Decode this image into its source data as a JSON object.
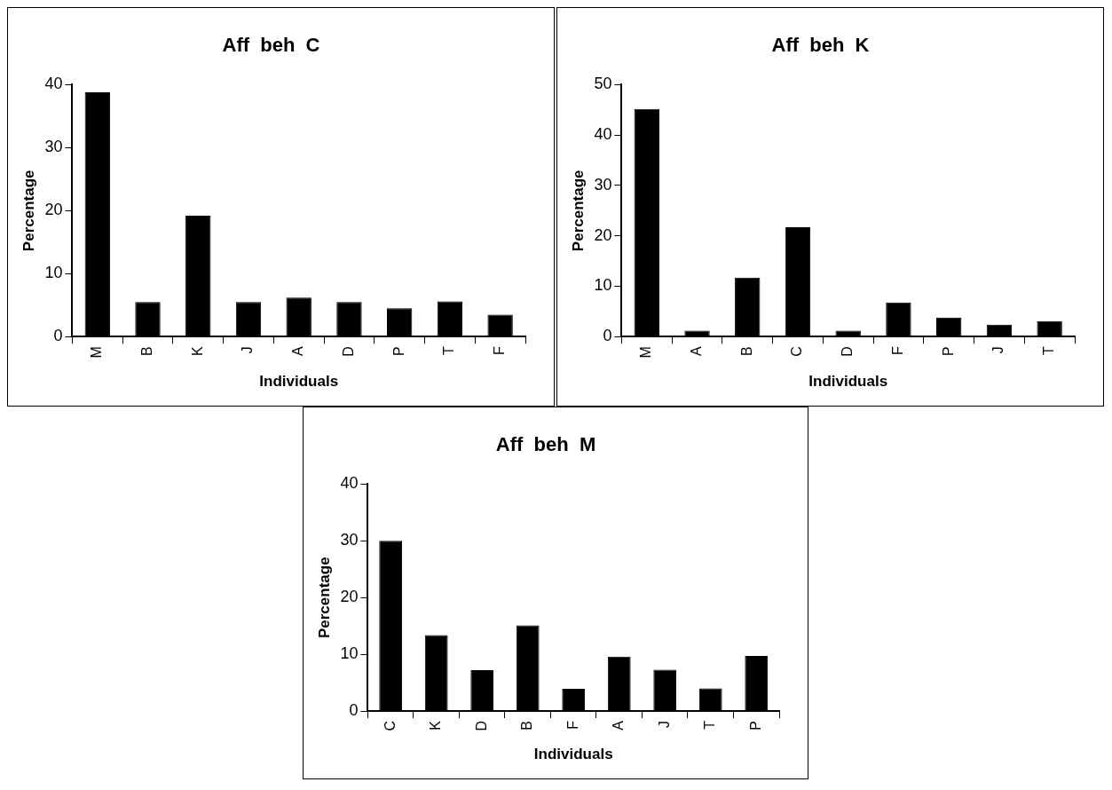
{
  "chart_data": [
    {
      "type": "bar",
      "title": "Aff  beh  C",
      "xlabel": "Individuals",
      "ylabel": "Percentage",
      "categories": [
        "M",
        "B",
        "K",
        "J",
        "A",
        "D",
        "P",
        "T",
        "F"
      ],
      "values": [
        38.8,
        5.5,
        19.2,
        5.5,
        6.2,
        5.5,
        4.5,
        5.6,
        3.5
      ],
      "color": "#000000",
      "ylim": [
        0,
        40
      ],
      "yticks": [
        0,
        10,
        20,
        30,
        40
      ],
      "grid": false,
      "legend": false
    },
    {
      "type": "bar",
      "title": "Aff  beh  K",
      "xlabel": "Individuals",
      "ylabel": "Percentage",
      "categories": [
        "M",
        "A",
        "B",
        "C",
        "D",
        "F",
        "P",
        "J",
        "T"
      ],
      "values": [
        45.2,
        1.2,
        11.7,
        21.7,
        1.2,
        6.8,
        3.8,
        2.4,
        3.1
      ],
      "color": "#000000",
      "ylim": [
        0,
        50
      ],
      "yticks": [
        0,
        10,
        20,
        30,
        40,
        50
      ],
      "grid": false,
      "legend": false
    },
    {
      "type": "bar",
      "title": "Aff  beh  M",
      "xlabel": "Individuals",
      "ylabel": "Percentage",
      "categories": [
        "C",
        "K",
        "D",
        "B",
        "F",
        "A",
        "J",
        "T",
        "P"
      ],
      "values": [
        30,
        13.4,
        7.2,
        15.1,
        3.9,
        9.6,
        7.3,
        4.0,
        9.7
      ],
      "color": "#000000",
      "ylim": [
        0,
        40
      ],
      "yticks": [
        0,
        10,
        20,
        30,
        40
      ],
      "grid": false,
      "legend": false
    }
  ]
}
